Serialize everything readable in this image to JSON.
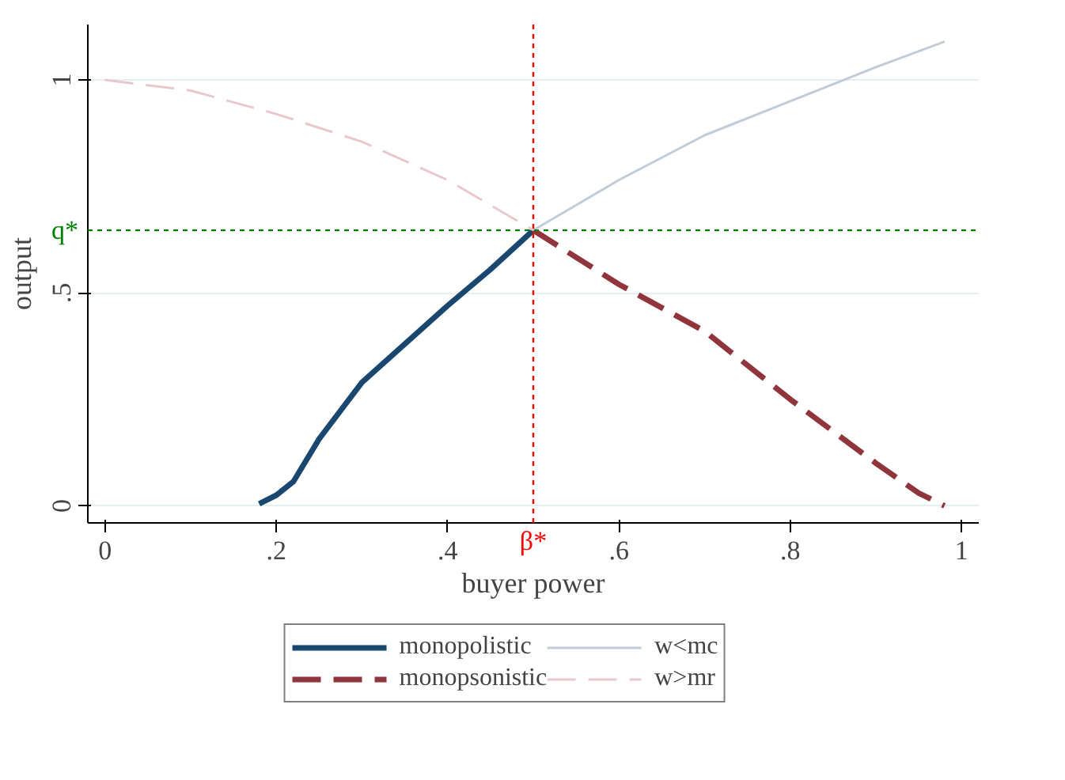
{
  "chart_data": {
    "type": "line",
    "xlabel": "buyer power",
    "ylabel": "output",
    "xlim": [
      -0.02,
      1.02
    ],
    "ylim": [
      -0.04,
      1.13
    ],
    "xticks": [
      {
        "value": 0,
        "label": "0"
      },
      {
        "value": 0.2,
        "label": ".2"
      },
      {
        "value": 0.4,
        "label": ".4"
      },
      {
        "value": 0.6,
        "label": ".6"
      },
      {
        "value": 0.8,
        "label": ".8"
      },
      {
        "value": 1,
        "label": "1"
      }
    ],
    "yticks": [
      {
        "value": 0,
        "label": "0"
      },
      {
        "value": 0.5,
        "label": ".5"
      },
      {
        "value": 1,
        "label": "1"
      }
    ],
    "grid": "y",
    "legend": "bottom",
    "marker": "none",
    "ref_lines": [
      {
        "axis": "x",
        "value": 0.5,
        "label": "β*",
        "color": "#ff0000",
        "line_style": "dotted"
      },
      {
        "axis": "y",
        "value": 0.647,
        "label": "q*",
        "color": "#008000",
        "line_style": "dotted"
      }
    ],
    "series": [
      {
        "name": "monopolistic",
        "color": "#1a476f",
        "line_style": "solid",
        "x": [
          0.18,
          0.2,
          0.22,
          0.25,
          0.3,
          0.35,
          0.4,
          0.45,
          0.5
        ],
        "values": [
          0.005,
          0.025,
          0.057,
          0.157,
          0.29,
          0.38,
          0.47,
          0.555,
          0.647
        ]
      },
      {
        "name": "monopsonistic",
        "color": "#90353b",
        "line_style": "dashed",
        "x": [
          0.5,
          0.6,
          0.7,
          0.8,
          0.9,
          0.95,
          0.98
        ],
        "values": [
          0.647,
          0.52,
          0.41,
          0.25,
          0.1,
          0.03,
          0.0
        ]
      },
      {
        "name": "w<mc",
        "color": "#c0ccd8",
        "line_style": "solid",
        "x": [
          0.5,
          0.6,
          0.7,
          0.8,
          0.9,
          0.98
        ],
        "values": [
          0.647,
          0.765,
          0.87,
          0.95,
          1.03,
          1.09
        ]
      },
      {
        "name": "w>mr",
        "color": "#e8c8cc",
        "line_style": "dashed",
        "x": [
          0,
          0.1,
          0.2,
          0.3,
          0.4,
          0.5
        ],
        "values": [
          1.0,
          0.975,
          0.92,
          0.855,
          0.765,
          0.647
        ]
      }
    ]
  }
}
